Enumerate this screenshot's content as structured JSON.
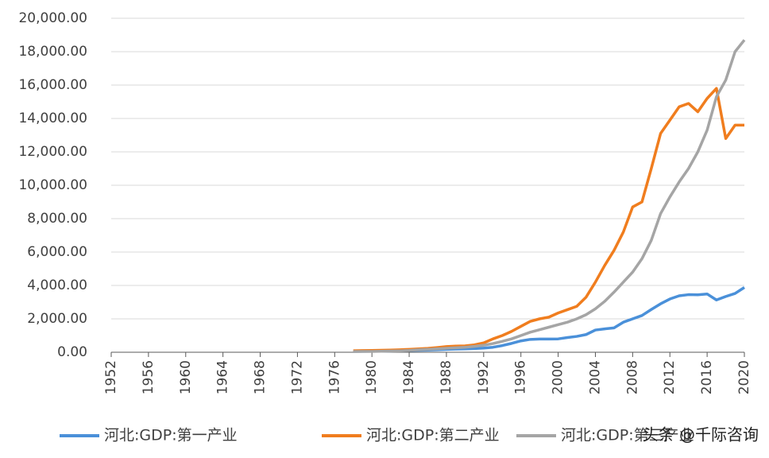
{
  "chart_data": {
    "type": "line",
    "x": [
      1978,
      1979,
      1980,
      1981,
      1982,
      1983,
      1984,
      1985,
      1986,
      1987,
      1988,
      1989,
      1990,
      1991,
      1992,
      1993,
      1994,
      1995,
      1996,
      1997,
      1998,
      1999,
      2000,
      2001,
      2002,
      2003,
      2004,
      2005,
      2006,
      2007,
      2008,
      2009,
      2010,
      2011,
      2012,
      2013,
      2014,
      2015,
      2016,
      2017,
      2018,
      2019,
      2020
    ],
    "series": [
      {
        "name": "河北:GDP:第一产业",
        "color": "#4a90d9",
        "values": [
          50,
          55,
          60,
          70,
          80,
          95,
          110,
          120,
          130,
          150,
          175,
          190,
          200,
          220,
          250,
          300,
          400,
          530,
          680,
          770,
          790,
          790,
          800,
          880,
          950,
          1060,
          1330,
          1400,
          1460,
          1800,
          2000,
          2200,
          2560,
          2900,
          3190,
          3380,
          3450,
          3440,
          3490,
          3130,
          3340,
          3520,
          3880
        ]
      },
      {
        "name": "河北:GDP:第二产业",
        "color": "#f07d1e",
        "values": [
          90,
          100,
          110,
          120,
          130,
          150,
          170,
          200,
          230,
          280,
          340,
          370,
          380,
          440,
          560,
          800,
          1000,
          1250,
          1550,
          1850,
          2000,
          2100,
          2350,
          2550,
          2750,
          3300,
          4200,
          5200,
          6100,
          7200,
          8700,
          9000,
          11000,
          13100,
          13900,
          14700,
          14900,
          14400,
          15200,
          15800,
          12800,
          13600,
          13600
        ]
      },
      {
        "name": "河北:GDP:第三产业",
        "color": "#a5a5a5",
        "values": [
          40,
          45,
          50,
          60,
          70,
          85,
          110,
          150,
          170,
          200,
          240,
          270,
          300,
          350,
          420,
          520,
          650,
          800,
          1000,
          1200,
          1350,
          1500,
          1650,
          1800,
          2000,
          2250,
          2600,
          3050,
          3600,
          4200,
          4800,
          5600,
          6700,
          8300,
          9300,
          10200,
          11000,
          12000,
          13300,
          15300,
          16300,
          18000,
          18700
        ]
      }
    ],
    "xlim": [
      1952,
      2020
    ],
    "xticks": [
      1952,
      1956,
      1960,
      1964,
      1968,
      1972,
      1976,
      1980,
      1984,
      1988,
      1992,
      1996,
      2000,
      2004,
      2008,
      2012,
      2016,
      2020
    ],
    "ylim": [
      0,
      20000
    ],
    "yticks": [
      {
        "value": 0,
        "label": "0.00"
      },
      {
        "value": 2000,
        "label": "2,000.00"
      },
      {
        "value": 4000,
        "label": "4,000.00"
      },
      {
        "value": 6000,
        "label": "6,000.00"
      },
      {
        "value": 8000,
        "label": "8,000.00"
      },
      {
        "value": 10000,
        "label": "10,000.00"
      },
      {
        "value": 12000,
        "label": "12,000.00"
      },
      {
        "value": 14000,
        "label": "14,000.00"
      },
      {
        "value": 16000,
        "label": "16,000.00"
      },
      {
        "value": 18000,
        "label": "18,000.00"
      },
      {
        "value": 20000,
        "label": "20,000.00"
      }
    ],
    "grid": true,
    "watermark": "头条 @千际咨询"
  }
}
